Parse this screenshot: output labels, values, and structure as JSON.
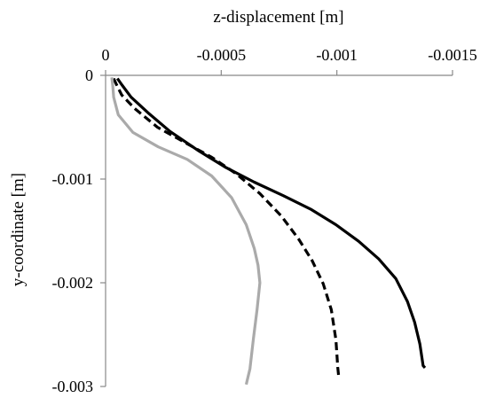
{
  "chart_data": {
    "type": "line",
    "title": "",
    "xlabel": "z-displacement [m]",
    "ylabel": "y-coordinate [m]",
    "xlim": [
      0,
      -0.0015
    ],
    "ylim": [
      0,
      -0.003
    ],
    "x_axis_position": "top",
    "y_axis_inverted": true,
    "grid": false,
    "legend": "none",
    "x_ticks": [
      {
        "value": 0,
        "label": "0"
      },
      {
        "value": -0.0005,
        "label": "-0.0005"
      },
      {
        "value": -0.001,
        "label": "-0.001"
      },
      {
        "value": -0.0015,
        "label": "-0.0015"
      }
    ],
    "y_ticks": [
      {
        "value": 0,
        "label": "0"
      },
      {
        "value": -0.001,
        "label": "-0.001"
      },
      {
        "value": -0.002,
        "label": "-0.002"
      },
      {
        "value": -0.003,
        "label": "-0.003"
      }
    ],
    "series": [
      {
        "style": "solid",
        "color": "#000000",
        "points": [
          [
            -5.1e-05,
            -3e-05
          ],
          [
            -7e-05,
            -9e-05
          ],
          [
            -0.00011,
            -0.00021
          ],
          [
            -0.000183,
            -0.00036
          ],
          [
            -0.000278,
            -0.00054
          ],
          [
            -0.000404,
            -0.00073
          ],
          [
            -0.000521,
            -0.00089
          ],
          [
            -0.000643,
            -0.00103
          ],
          [
            -0.000768,
            -0.00116
          ],
          [
            -0.000886,
            -0.00129
          ],
          [
            -0.000996,
            -0.00144
          ],
          [
            -0.001094,
            -0.0016
          ],
          [
            -0.001181,
            -0.00177
          ],
          [
            -0.001255,
            -0.00196
          ],
          [
            -0.001305,
            -0.00218
          ],
          [
            -0.001336,
            -0.00238
          ],
          [
            -0.001359,
            -0.00259
          ],
          [
            -0.001373,
            -0.0028
          ],
          [
            -0.001381,
            -0.00282
          ]
        ]
      },
      {
        "style": "dashed",
        "color": "#000000",
        "points": [
          [
            -3.5e-05,
            -3e-05
          ],
          [
            -4.7e-05,
            -9e-05
          ],
          [
            -7e-05,
            -0.00019
          ],
          [
            -0.000126,
            -0.00032
          ],
          [
            -0.000224,
            -0.0005
          ],
          [
            -0.000353,
            -0.00066
          ],
          [
            -0.000459,
            -0.00079
          ],
          [
            -0.000565,
            -0.00095
          ],
          [
            -0.000667,
            -0.00114
          ],
          [
            -0.000761,
            -0.00136
          ],
          [
            -0.000835,
            -0.00158
          ],
          [
            -0.000894,
            -0.00179
          ],
          [
            -0.000941,
            -0.00201
          ],
          [
            -0.000976,
            -0.00226
          ],
          [
            -0.000996,
            -0.00255
          ],
          [
            -0.001004,
            -0.00282
          ],
          [
            -0.001008,
            -0.00291
          ]
        ]
      },
      {
        "style": "solid",
        "color": "#aaaaaa",
        "points": [
          [
            -2.7e-05,
            -2e-05
          ],
          [
            -3.1e-05,
            -0.0001
          ],
          [
            -3.5e-05,
            -0.00021
          ],
          [
            -5.5e-05,
            -0.00038
          ],
          [
            -0.000118,
            -0.00055
          ],
          [
            -0.000228,
            -0.00069
          ],
          [
            -0.000353,
            -0.00081
          ],
          [
            -0.000459,
            -0.00097
          ],
          [
            -0.000545,
            -0.00118
          ],
          [
            -0.000608,
            -0.00144
          ],
          [
            -0.000643,
            -0.00167
          ],
          [
            -0.000659,
            -0.00183
          ],
          [
            -0.000667,
            -0.002
          ],
          [
            -0.000655,
            -0.00226
          ],
          [
            -0.000639,
            -0.00254
          ],
          [
            -0.000624,
            -0.00283
          ],
          [
            -0.000608,
            -0.00298
          ]
        ]
      }
    ]
  }
}
